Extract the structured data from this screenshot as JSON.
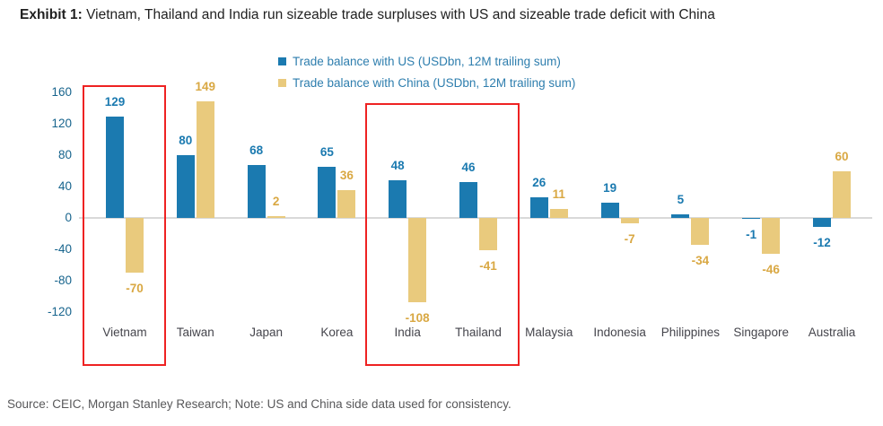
{
  "title": {
    "prefix": "Exhibit 1:",
    "text": " Vietnam, Thailand and India run sizeable trade surpluses with US and sizeable trade deficit with China"
  },
  "source": "Source: CEIC, Morgan Stanley Research; Note: US and China side data used for consistency.",
  "colors": {
    "us_bar": "#1b7ab0",
    "china_bar": "#e9ca7d",
    "us_label": "#1b7ab0",
    "china_label": "#d9a843",
    "axis_tick": "#17648d",
    "category_label": "#45454c",
    "legend_text": "#2e7eae",
    "gridline": "#d9d9d9",
    "highlight_border": "#ee2222"
  },
  "chart_data": {
    "type": "bar",
    "title": "Exhibit 1: Vietnam, Thailand and India run sizeable trade surpluses with US and sizeable trade deficit with China",
    "categories": [
      "Vietnam",
      "Taiwan",
      "Japan",
      "Korea",
      "India",
      "Thailand",
      "Malaysia",
      "Indonesia",
      "Philippines",
      "Singapore",
      "Australia"
    ],
    "series": [
      {
        "key": "us",
        "name": "Trade balance with US (USDbn, 12M trailing sum)",
        "values": [
          129,
          80,
          68,
          65,
          48,
          46,
          26,
          19,
          5,
          -1,
          -12
        ]
      },
      {
        "key": "china",
        "name": "Trade balance with China (USDbn, 12M trailing sum)",
        "values": [
          -70,
          149,
          2,
          36,
          -108,
          -41,
          11,
          -7,
          -34,
          -46,
          60
        ]
      }
    ],
    "y_ticks": [
      160,
      120,
      80,
      40,
      0,
      -40,
      -80,
      -120
    ],
    "ylim": [
      -140,
      170
    ],
    "xlabel": "",
    "ylabel": "",
    "legend_position": "top-center",
    "grid": "zero-line-only",
    "highlight_boxes": [
      {
        "from": "Vietnam",
        "to": "Vietnam"
      },
      {
        "from": "India",
        "to": "Thailand"
      }
    ]
  }
}
